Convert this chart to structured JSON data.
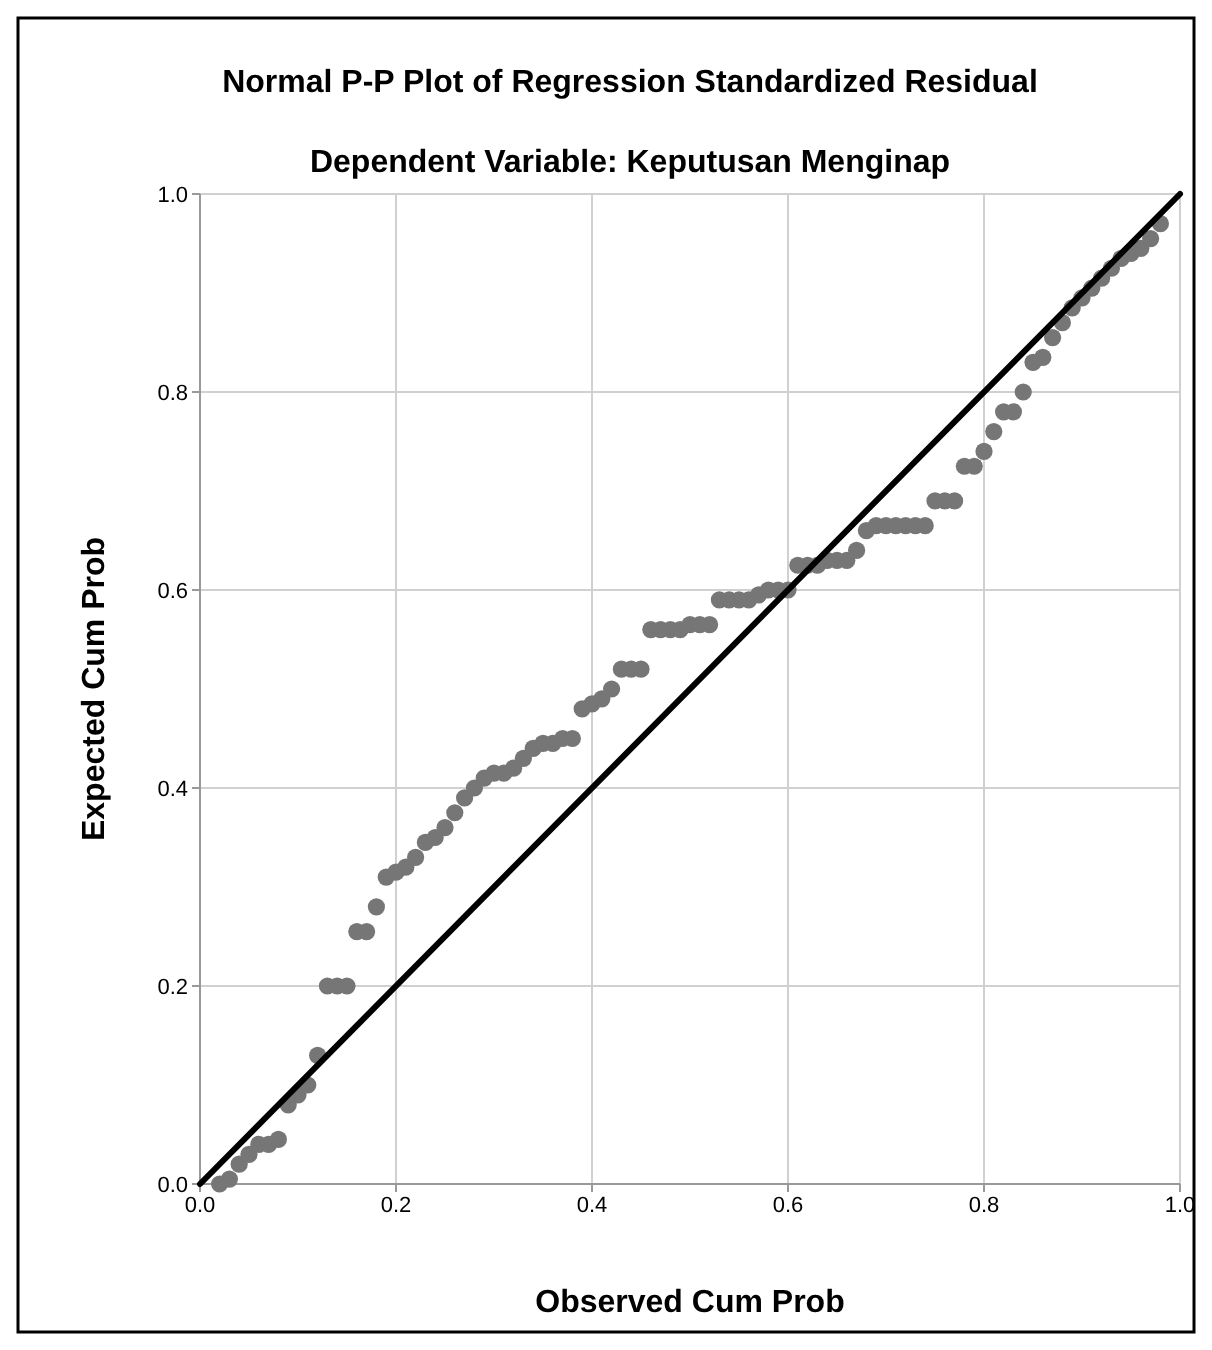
{
  "chart_data": {
    "type": "scatter",
    "title": "Normal P-P Plot of Regression Standardized Residual",
    "subtitle": "Dependent Variable: Keputusan Menginap",
    "xlabel": "Observed Cum Prob",
    "ylabel": "Expected Cum Prob",
    "xlim": [
      0,
      1
    ],
    "ylim": [
      0,
      1
    ],
    "xticks": [
      {
        "value": 0,
        "label": "0.0"
      },
      {
        "value": 0.2,
        "label": "0.2"
      },
      {
        "value": 0.4,
        "label": "0.4"
      },
      {
        "value": 0.6,
        "label": "0.6"
      },
      {
        "value": 0.8,
        "label": "0.8"
      },
      {
        "value": 1,
        "label": "1.0"
      }
    ],
    "yticks": [
      {
        "value": 0,
        "label": "0.0"
      },
      {
        "value": 0.2,
        "label": "0.2"
      },
      {
        "value": 0.4,
        "label": "0.4"
      },
      {
        "value": 0.6,
        "label": "0.6"
      },
      {
        "value": 0.8,
        "label": "0.8"
      },
      {
        "value": 1,
        "label": "1.0"
      }
    ],
    "grid": true,
    "series": [
      {
        "marker": "circle",
        "color": "#767676",
        "x": [
          0.02,
          0.03,
          0.04,
          0.05,
          0.06,
          0.07,
          0.08,
          0.09,
          0.1,
          0.11,
          0.12,
          0.13,
          0.14,
          0.15,
          0.16,
          0.17,
          0.18,
          0.19,
          0.2,
          0.21,
          0.22,
          0.23,
          0.24,
          0.25,
          0.26,
          0.27,
          0.28,
          0.29,
          0.3,
          0.31,
          0.32,
          0.33,
          0.34,
          0.35,
          0.36,
          0.37,
          0.38,
          0.39,
          0.4,
          0.41,
          0.42,
          0.43,
          0.44,
          0.45,
          0.46,
          0.47,
          0.48,
          0.49,
          0.5,
          0.51,
          0.52,
          0.53,
          0.54,
          0.55,
          0.56,
          0.57,
          0.58,
          0.59,
          0.6,
          0.61,
          0.62,
          0.63,
          0.64,
          0.65,
          0.66,
          0.67,
          0.68,
          0.69,
          0.7,
          0.71,
          0.72,
          0.73,
          0.74,
          0.75,
          0.76,
          0.77,
          0.78,
          0.79,
          0.8,
          0.81,
          0.82,
          0.83,
          0.84,
          0.85,
          0.86,
          0.87,
          0.88,
          0.89,
          0.9,
          0.91,
          0.92,
          0.93,
          0.94,
          0.95,
          0.96,
          0.97,
          0.98
        ],
        "values": [
          0.0,
          0.005,
          0.02,
          0.03,
          0.04,
          0.04,
          0.045,
          0.08,
          0.09,
          0.1,
          0.13,
          0.2,
          0.2,
          0.2,
          0.255,
          0.255,
          0.28,
          0.31,
          0.315,
          0.32,
          0.33,
          0.345,
          0.35,
          0.36,
          0.375,
          0.39,
          0.4,
          0.41,
          0.415,
          0.415,
          0.42,
          0.43,
          0.44,
          0.445,
          0.445,
          0.45,
          0.45,
          0.48,
          0.485,
          0.49,
          0.5,
          0.52,
          0.52,
          0.52,
          0.56,
          0.56,
          0.56,
          0.56,
          0.565,
          0.565,
          0.565,
          0.59,
          0.59,
          0.59,
          0.59,
          0.595,
          0.6,
          0.6,
          0.6,
          0.625,
          0.625,
          0.625,
          0.63,
          0.63,
          0.63,
          0.64,
          0.66,
          0.665,
          0.665,
          0.665,
          0.665,
          0.665,
          0.665,
          0.69,
          0.69,
          0.69,
          0.725,
          0.725,
          0.74,
          0.76,
          0.78,
          0.78,
          0.8,
          0.83,
          0.835,
          0.855,
          0.87,
          0.885,
          0.895,
          0.905,
          0.915,
          0.925,
          0.935,
          0.94,
          0.945,
          0.955,
          0.97
        ]
      },
      {
        "type": "line",
        "marker": "none",
        "color": "#000000",
        "x": [
          0,
          1
        ],
        "values": [
          0,
          1
        ]
      }
    ]
  }
}
